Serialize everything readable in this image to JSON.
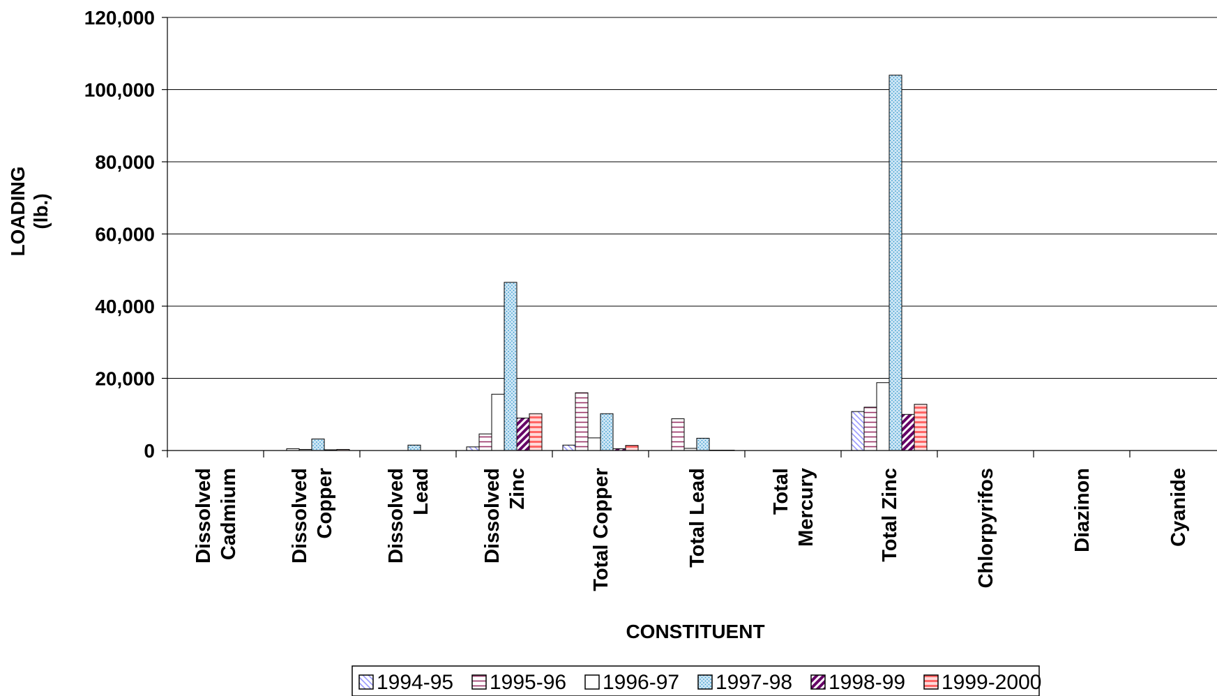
{
  "chart_data": {
    "type": "bar",
    "title": "",
    "xlabel": "CONSTITUENT",
    "ylabel": [
      "LOADING",
      "(lb.)"
    ],
    "ylim": [
      0,
      120000
    ],
    "yticks": [
      0,
      20000,
      40000,
      60000,
      80000,
      100000,
      120000
    ],
    "ytick_labels": [
      "0",
      "20,000",
      "40,000",
      "60,000",
      "80,000",
      "100,000",
      "120,000"
    ],
    "grid": "horizontal",
    "legend_position": "bottom",
    "categories": [
      [
        "Dissolved",
        "Cadmium"
      ],
      [
        "Dissolved",
        "Copper"
      ],
      [
        "Dissolved",
        "Lead"
      ],
      [
        "Dissolved",
        "Zinc"
      ],
      [
        "Total Copper"
      ],
      [
        "Total Lead"
      ],
      [
        "Total",
        "Mercury"
      ],
      [
        "Total Zinc"
      ],
      [
        "Chlorpyrifos"
      ],
      [
        "Diazinon"
      ],
      [
        "Cyanide"
      ]
    ],
    "series": [
      {
        "name": "1994-95",
        "pattern": "diag-down",
        "color": "#9999ff",
        "values": [
          0,
          0,
          0,
          1000,
          1500,
          0,
          0,
          10800,
          0,
          0,
          0
        ]
      },
      {
        "name": "1995-96",
        "pattern": "horizontal",
        "color": "#993366",
        "values": [
          0,
          500,
          0,
          4600,
          16000,
          8800,
          0,
          12000,
          0,
          0,
          0
        ]
      },
      {
        "name": "1996-97",
        "pattern": "vertical",
        "color": "#000000",
        "values": [
          0,
          300,
          0,
          15600,
          3500,
          600,
          0,
          18800,
          0,
          0,
          0
        ]
      },
      {
        "name": "1997-98",
        "pattern": "dots",
        "color": "#3399cc",
        "values": [
          0,
          3200,
          1500,
          46600,
          10200,
          3400,
          0,
          104000,
          0,
          0,
          0
        ]
      },
      {
        "name": "1998-99",
        "pattern": "diag-up",
        "color": "#660066",
        "values": [
          0,
          200,
          0,
          9000,
          500,
          100,
          0,
          10000,
          0,
          0,
          0
        ]
      },
      {
        "name": "1999-2000",
        "pattern": "horizontal-bold",
        "color": "#ff6666",
        "values": [
          0,
          300,
          0,
          10200,
          1400,
          100,
          0,
          12800,
          0,
          0,
          0
        ]
      }
    ]
  }
}
